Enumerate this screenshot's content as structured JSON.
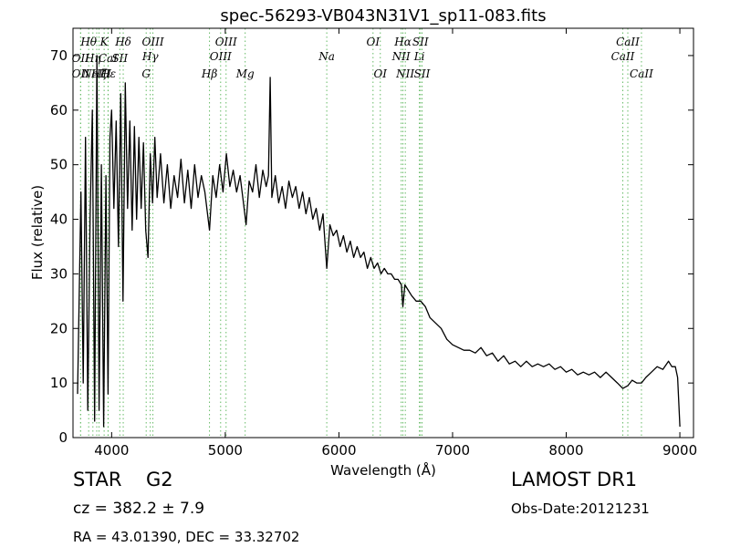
{
  "chart_data": {
    "type": "line",
    "title": "spec-56293-VB043N31V1_sp11-083.fits",
    "xlabel": "Wavelength (Å)",
    "ylabel": "Flux (relative)",
    "xlim": [
      3660,
      9120
    ],
    "ylim": [
      0,
      75
    ],
    "xticks": [
      4000,
      5000,
      6000,
      7000,
      8000,
      9000
    ],
    "yticks": [
      0,
      10,
      20,
      30,
      40,
      50,
      60,
      70
    ],
    "grid": false,
    "spectrum_color": "#000000",
    "line_marker_color": "#66bb66",
    "series": [
      {
        "values": [
          [
            3700,
            8
          ],
          [
            3730,
            45
          ],
          [
            3750,
            10
          ],
          [
            3770,
            55
          ],
          [
            3790,
            5
          ],
          [
            3810,
            40
          ],
          [
            3830,
            60
          ],
          [
            3850,
            3
          ],
          [
            3870,
            70
          ],
          [
            3890,
            5
          ],
          [
            3910,
            50
          ],
          [
            3930,
            2
          ],
          [
            3950,
            48
          ],
          [
            3968,
            8
          ],
          [
            3985,
            55
          ],
          [
            4000,
            60
          ],
          [
            4020,
            42
          ],
          [
            4040,
            58
          ],
          [
            4060,
            35
          ],
          [
            4080,
            63
          ],
          [
            4100,
            25
          ],
          [
            4120,
            65
          ],
          [
            4140,
            42
          ],
          [
            4160,
            58
          ],
          [
            4180,
            38
          ],
          [
            4200,
            57
          ],
          [
            4220,
            40
          ],
          [
            4240,
            55
          ],
          [
            4260,
            42
          ],
          [
            4280,
            54
          ],
          [
            4300,
            38
          ],
          [
            4320,
            33
          ],
          [
            4340,
            52
          ],
          [
            4360,
            43
          ],
          [
            4380,
            55
          ],
          [
            4400,
            44
          ],
          [
            4430,
            52
          ],
          [
            4460,
            43
          ],
          [
            4490,
            50
          ],
          [
            4520,
            42
          ],
          [
            4550,
            48
          ],
          [
            4580,
            44
          ],
          [
            4610,
            51
          ],
          [
            4640,
            43
          ],
          [
            4670,
            49
          ],
          [
            4700,
            42
          ],
          [
            4730,
            50
          ],
          [
            4760,
            44
          ],
          [
            4790,
            48
          ],
          [
            4820,
            45
          ],
          [
            4861,
            38
          ],
          [
            4890,
            48
          ],
          [
            4920,
            44
          ],
          [
            4950,
            50
          ],
          [
            4980,
            45
          ],
          [
            5010,
            52
          ],
          [
            5040,
            46
          ],
          [
            5070,
            49
          ],
          [
            5100,
            45
          ],
          [
            5130,
            48
          ],
          [
            5160,
            43
          ],
          [
            5183,
            39
          ],
          [
            5210,
            47
          ],
          [
            5240,
            45
          ],
          [
            5270,
            50
          ],
          [
            5300,
            44
          ],
          [
            5330,
            49
          ],
          [
            5360,
            46
          ],
          [
            5380,
            48
          ],
          [
            5395,
            66
          ],
          [
            5410,
            44
          ],
          [
            5440,
            48
          ],
          [
            5470,
            43
          ],
          [
            5500,
            46
          ],
          [
            5530,
            42
          ],
          [
            5560,
            47
          ],
          [
            5590,
            44
          ],
          [
            5620,
            46
          ],
          [
            5650,
            42
          ],
          [
            5680,
            45
          ],
          [
            5710,
            41
          ],
          [
            5740,
            44
          ],
          [
            5770,
            40
          ],
          [
            5800,
            42
          ],
          [
            5830,
            38
          ],
          [
            5860,
            41
          ],
          [
            5893,
            31
          ],
          [
            5920,
            39
          ],
          [
            5950,
            37
          ],
          [
            5980,
            38
          ],
          [
            6010,
            35
          ],
          [
            6040,
            37
          ],
          [
            6070,
            34
          ],
          [
            6100,
            36
          ],
          [
            6130,
            33
          ],
          [
            6160,
            35
          ],
          [
            6190,
            33
          ],
          [
            6220,
            34
          ],
          [
            6250,
            31
          ],
          [
            6280,
            33
          ],
          [
            6310,
            31
          ],
          [
            6340,
            32
          ],
          [
            6370,
            30
          ],
          [
            6400,
            31
          ],
          [
            6430,
            30
          ],
          [
            6460,
            30
          ],
          [
            6490,
            29
          ],
          [
            6520,
            29
          ],
          [
            6550,
            28
          ],
          [
            6563,
            24
          ],
          [
            6580,
            28
          ],
          [
            6610,
            27
          ],
          [
            6640,
            26
          ],
          [
            6680,
            25
          ],
          [
            6720,
            25
          ],
          [
            6760,
            24
          ],
          [
            6800,
            22
          ],
          [
            6850,
            21
          ],
          [
            6900,
            20
          ],
          [
            6950,
            18
          ],
          [
            7000,
            17
          ],
          [
            7050,
            16.5
          ],
          [
            7100,
            16
          ],
          [
            7150,
            16
          ],
          [
            7200,
            15.5
          ],
          [
            7250,
            16.5
          ],
          [
            7300,
            15
          ],
          [
            7350,
            15.5
          ],
          [
            7400,
            14
          ],
          [
            7450,
            15
          ],
          [
            7500,
            13.5
          ],
          [
            7550,
            14
          ],
          [
            7600,
            13
          ],
          [
            7650,
            14
          ],
          [
            7700,
            13
          ],
          [
            7750,
            13.5
          ],
          [
            7800,
            13
          ],
          [
            7850,
            13.5
          ],
          [
            7900,
            12.5
          ],
          [
            7950,
            13
          ],
          [
            8000,
            12
          ],
          [
            8050,
            12.5
          ],
          [
            8100,
            11.5
          ],
          [
            8150,
            12
          ],
          [
            8200,
            11.5
          ],
          [
            8250,
            12
          ],
          [
            8300,
            11
          ],
          [
            8350,
            12
          ],
          [
            8400,
            11
          ],
          [
            8450,
            10
          ],
          [
            8498,
            9
          ],
          [
            8542,
            9.5
          ],
          [
            8580,
            10.5
          ],
          [
            8620,
            10
          ],
          [
            8662,
            10
          ],
          [
            8700,
            11
          ],
          [
            8750,
            12
          ],
          [
            8800,
            13
          ],
          [
            8850,
            12.5
          ],
          [
            8900,
            14
          ],
          [
            8930,
            13
          ],
          [
            8960,
            13
          ],
          [
            8980,
            11
          ],
          [
            9000,
            2
          ]
        ]
      }
    ],
    "lines": [
      {
        "x": 3727,
        "label": "OII",
        "row": 1
      },
      {
        "x": 3727,
        "label": "OII",
        "row": 3
      },
      {
        "x": 3798,
        "label": "Hθ",
        "row": 0
      },
      {
        "x": 3835,
        "label": "Hη",
        "row": 1
      },
      {
        "x": 3869,
        "label": "NeIII",
        "row": 3
      },
      {
        "x": 3889,
        "label": "Hζ",
        "row": 3
      },
      {
        "x": 3934,
        "label": "K",
        "row": 0
      },
      {
        "x": 3968,
        "label": "CaI",
        "row": 1
      },
      {
        "x": 3970,
        "label": "Hε",
        "row": 3
      },
      {
        "x": 4072,
        "label": "SII",
        "row": 1
      },
      {
        "x": 4102,
        "label": "Hδ",
        "row": 0
      },
      {
        "x": 4304,
        "label": "G",
        "row": 3
      },
      {
        "x": 4340,
        "label": "Hγ",
        "row": 2
      },
      {
        "x": 4363,
        "label": "OIII",
        "row": 0
      },
      {
        "x": 4861,
        "label": "Hβ",
        "row": 3
      },
      {
        "x": 4959,
        "label": "OIII",
        "row": 2
      },
      {
        "x": 5007,
        "label": "OIII",
        "row": 0
      },
      {
        "x": 5175,
        "label": "Mg",
        "row": 3
      },
      {
        "x": 5893,
        "label": "Na",
        "row": 2
      },
      {
        "x": 6300,
        "label": "OI",
        "row": 0
      },
      {
        "x": 6364,
        "label": "OI",
        "row": 3
      },
      {
        "x": 6548,
        "label": "NII",
        "row": 2
      },
      {
        "x": 6563,
        "label": "Hα",
        "row": 0
      },
      {
        "x": 6584,
        "label": "NII",
        "row": 3
      },
      {
        "x": 6708,
        "label": "Li",
        "row": 2
      },
      {
        "x": 6717,
        "label": "SII",
        "row": 0
      },
      {
        "x": 6731,
        "label": "SII",
        "row": 3
      },
      {
        "x": 8498,
        "label": "CaII",
        "row": 2
      },
      {
        "x": 8542,
        "label": "CaII",
        "row": 0
      },
      {
        "x": 8662,
        "label": "CaII",
        "row": 3
      }
    ]
  },
  "info": {
    "class": "STAR",
    "subclass": "G2",
    "redshift": "cz = 382.2 ± 7.9",
    "coords": "RA = 43.01390, DEC = 33.32702",
    "survey": "LAMOST DR1",
    "obs_date": "Obs-Date:20121231"
  }
}
